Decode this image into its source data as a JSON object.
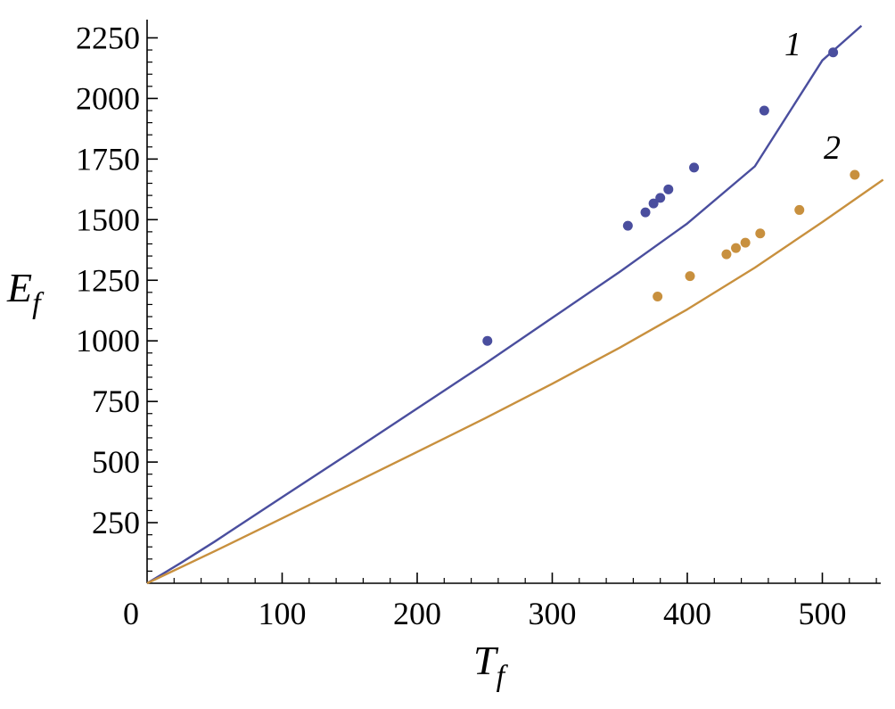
{
  "chart_data": {
    "type": "line",
    "xlabel": {
      "main": "T",
      "sub": "f"
    },
    "ylabel": {
      "main": "E",
      "sub": "f"
    },
    "xlim": [
      0,
      545
    ],
    "ylim": [
      0,
      2300
    ],
    "x_ticks": [
      100,
      200,
      300,
      400,
      500
    ],
    "x_origin_label": "0",
    "y_ticks": [
      250,
      500,
      750,
      1000,
      1250,
      1500,
      1750,
      2000,
      2250
    ],
    "grid": false,
    "legend": "none",
    "series": [
      {
        "label": "1",
        "color": "#4a4e9e",
        "line_x": [
          0,
          25,
          50,
          100,
          150,
          200,
          250,
          300,
          350,
          400,
          450,
          500,
          529
        ],
        "line_y": [
          0,
          84,
          172,
          355,
          537,
          721,
          905,
          1095,
          1285,
          1484,
          1720,
          2157,
          2300
        ],
        "line_note": "approximate smooth fitted curve",
        "points_x": [
          252,
          356,
          369,
          375,
          380,
          386,
          405,
          457,
          508
        ],
        "points_y": [
          1000,
          1475,
          1530,
          1567,
          1590,
          1625,
          1715,
          1950,
          2190
        ]
      },
      {
        "label": "2",
        "color": "#c8903e",
        "line_x": [
          0,
          50,
          100,
          150,
          200,
          250,
          300,
          350,
          400,
          450,
          500,
          545
        ],
        "line_y": [
          0,
          132,
          268,
          405,
          542,
          680,
          823,
          972,
          1130,
          1302,
          1490,
          1665
        ],
        "points_x": [
          378,
          402,
          429,
          436,
          443,
          454,
          483,
          524
        ],
        "points_y": [
          1183,
          1267,
          1357,
          1383,
          1405,
          1443,
          1540,
          1685
        ]
      }
    ]
  }
}
